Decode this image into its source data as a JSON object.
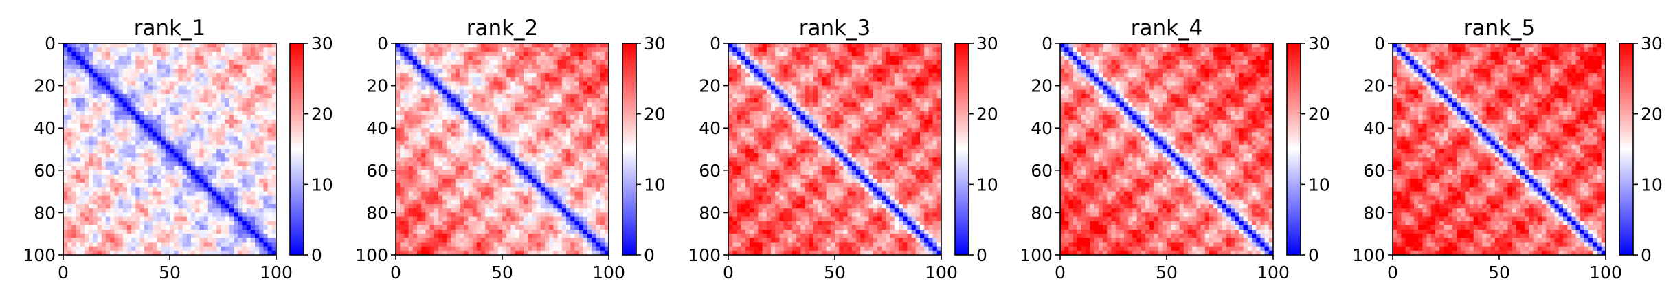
{
  "chart_data": [
    {
      "type": "heatmap",
      "title": "rank_1",
      "grid": false,
      "colormap": "bwr",
      "x_range": [
        0,
        100
      ],
      "y_range": [
        0,
        100
      ],
      "y_inverted": true,
      "x_ticks": [
        "0",
        "50",
        "100"
      ],
      "y_ticks": [
        "0",
        "20",
        "40",
        "60",
        "80",
        "100"
      ],
      "colorbar": {
        "min": 0,
        "max": 30,
        "ticks": [
          "0",
          "10",
          "20",
          "30"
        ]
      },
      "diagonal_value": 0,
      "off_diagonal_typical": 13,
      "far_off_diagonal": 20
    },
    {
      "type": "heatmap",
      "title": "rank_2",
      "grid": false,
      "colormap": "bwr",
      "x_range": [
        0,
        100
      ],
      "y_range": [
        0,
        100
      ],
      "y_inverted": true,
      "x_ticks": [
        "0",
        "50",
        "100"
      ],
      "y_ticks": [
        "0",
        "20",
        "40",
        "60",
        "80",
        "100"
      ],
      "colorbar": {
        "min": 0,
        "max": 30,
        "ticks": [
          "0",
          "10",
          "20",
          "30"
        ]
      },
      "diagonal_value": 0,
      "off_diagonal_typical": 17,
      "far_off_diagonal": 26
    },
    {
      "type": "heatmap",
      "title": "rank_3",
      "grid": false,
      "colormap": "bwr",
      "x_range": [
        0,
        100
      ],
      "y_range": [
        0,
        100
      ],
      "y_inverted": true,
      "x_ticks": [
        "0",
        "50",
        "100"
      ],
      "y_ticks": [
        "0",
        "20",
        "40",
        "60",
        "80",
        "100"
      ],
      "colorbar": {
        "min": 0,
        "max": 30,
        "ticks": [
          "0",
          "10",
          "20",
          "30"
        ]
      },
      "diagonal_value": 0,
      "off_diagonal_typical": 22,
      "far_off_diagonal": 26
    },
    {
      "type": "heatmap",
      "title": "rank_4",
      "grid": false,
      "colormap": "bwr",
      "x_range": [
        0,
        100
      ],
      "y_range": [
        0,
        100
      ],
      "y_inverted": true,
      "x_ticks": [
        "0",
        "50",
        "100"
      ],
      "y_ticks": [
        "0",
        "20",
        "40",
        "60",
        "80",
        "100"
      ],
      "colorbar": {
        "min": 0,
        "max": 30,
        "ticks": [
          "0",
          "10",
          "20",
          "30"
        ]
      },
      "diagonal_value": 0,
      "off_diagonal_typical": 21,
      "far_off_diagonal": 28
    },
    {
      "type": "heatmap",
      "title": "rank_5",
      "grid": false,
      "colormap": "bwr",
      "x_range": [
        0,
        100
      ],
      "y_range": [
        0,
        100
      ],
      "y_inverted": true,
      "x_ticks": [
        "0",
        "50",
        "100"
      ],
      "y_ticks": [
        "0",
        "20",
        "40",
        "60",
        "80",
        "100"
      ],
      "colorbar": {
        "min": 0,
        "max": 30,
        "ticks": [
          "0",
          "10",
          "20",
          "30"
        ]
      },
      "diagonal_value": 0,
      "off_diagonal_typical": 23,
      "far_off_diagonal": 28
    }
  ]
}
